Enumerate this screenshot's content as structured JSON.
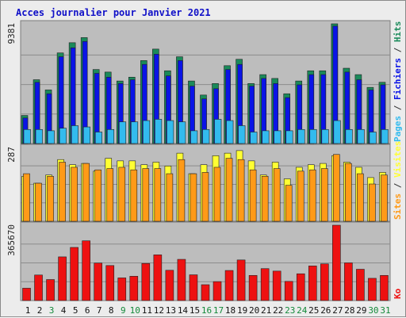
{
  "chart_data": {
    "type": "bar",
    "title": "Acces journalier pour Janvier 2021",
    "categories": [
      "1",
      "2",
      "3",
      "4",
      "5",
      "6",
      "7",
      "8",
      "9",
      "10",
      "11",
      "12",
      "13",
      "14",
      "15",
      "16",
      "17",
      "18",
      "19",
      "20",
      "21",
      "22",
      "23",
      "24",
      "25",
      "26",
      "27",
      "28",
      "29",
      "30",
      "31"
    ],
    "weekend_days": [
      "3",
      "9",
      "10",
      "16",
      "17",
      "23",
      "24",
      "30",
      "31"
    ],
    "colors": {
      "hits": "#1a8a5a",
      "fichiers": "#0a14e6",
      "pages": "#33bbee",
      "visites": "#ffff33",
      "sites": "#ff9a18",
      "ko": "#ee1111",
      "weekday_label": "#111111",
      "weekend_label": "#138a3a",
      "panel_bg": "#bdbdbd"
    },
    "panels": [
      {
        "ymax_label": "9381",
        "ymax": 9381,
        "right_label_parts": [
          {
            "text": "Pages",
            "color": "#33bbee"
          },
          {
            "text": " / ",
            "color": "#333333"
          },
          {
            "text": "Fichiers",
            "color": "#0a14e6"
          },
          {
            "text": " / ",
            "color": "#333333"
          },
          {
            "text": "Hits",
            "color": "#1a8a5a"
          }
        ],
        "series": [
          {
            "name": "Hits",
            "values": [
              2200,
              5000,
              4200,
              7100,
              7900,
              8300,
              5800,
              5600,
              4900,
              5200,
              6500,
              7400,
              5700,
              6800,
              4900,
              3800,
              4700,
              6100,
              6600,
              4700,
              5400,
              5100,
              3900,
              4900,
              5700,
              5700,
              9381,
              5900,
              5400,
              4400,
              4800
            ]
          },
          {
            "name": "Fichiers",
            "values": [
              2000,
              4800,
              3900,
              6800,
              7500,
              8000,
              5500,
              5200,
              4700,
              5000,
              6200,
              7000,
              5300,
              6500,
              4500,
              3500,
              4300,
              5800,
              6200,
              4500,
              5100,
              4700,
              3600,
              4600,
              5400,
              5400,
              9200,
              5600,
              5000,
              4200,
              4600
            ]
          },
          {
            "name": "Pages",
            "values": [
              1100,
              1100,
              1000,
              1200,
              1400,
              1300,
              900,
              1100,
              1700,
              1700,
              1800,
              1900,
              1800,
              1700,
              1000,
              1100,
              1900,
              1800,
              1400,
              900,
              1000,
              1000,
              1000,
              1100,
              1100,
              1100,
              1800,
              1100,
              1100,
              900,
              1100
            ]
          }
        ]
      },
      {
        "ymax_label": "287",
        "ymax": 287,
        "right_label_parts": [
          {
            "text": "Sites",
            "color": "#ff9a18"
          },
          {
            "text": " / ",
            "color": "#333333"
          },
          {
            "text": "Visites",
            "color": "#ffff33"
          }
        ],
        "series": [
          {
            "name": "Visites",
            "values": [
              175,
              148,
              180,
              240,
              220,
              225,
              195,
              245,
              235,
              235,
              220,
              230,
              215,
              265,
              185,
              220,
              255,
              265,
              275,
              235,
              180,
              230,
              165,
              210,
              220,
              225,
              255,
              230,
              210,
              170,
              190
            ]
          },
          {
            "name": "Sites",
            "values": [
              185,
              148,
              175,
              230,
              210,
              225,
              200,
              205,
              210,
              200,
              205,
              205,
              185,
              240,
              185,
              190,
              210,
              245,
              240,
              200,
              175,
              205,
              140,
              195,
              200,
              205,
              260,
              225,
              185,
              145,
              180
            ]
          }
        ]
      },
      {
        "ymax_label": "365670",
        "ymax": 365670,
        "right_label_parts": [
          {
            "text": "Ko",
            "color": "#ee1111"
          }
        ],
        "series": [
          {
            "name": "Ko",
            "values": [
              60000,
              124000,
              102000,
              212000,
              258000,
              290000,
              182000,
              170000,
              110000,
              118000,
              180000,
              222000,
              147000,
              200000,
              125000,
              77000,
              92000,
              146000,
              197000,
              122000,
              155000,
              143000,
              93000,
              130000,
              168000,
              178000,
              365670,
              183000,
              152000,
              108000,
              122000
            ]
          }
        ]
      }
    ]
  }
}
